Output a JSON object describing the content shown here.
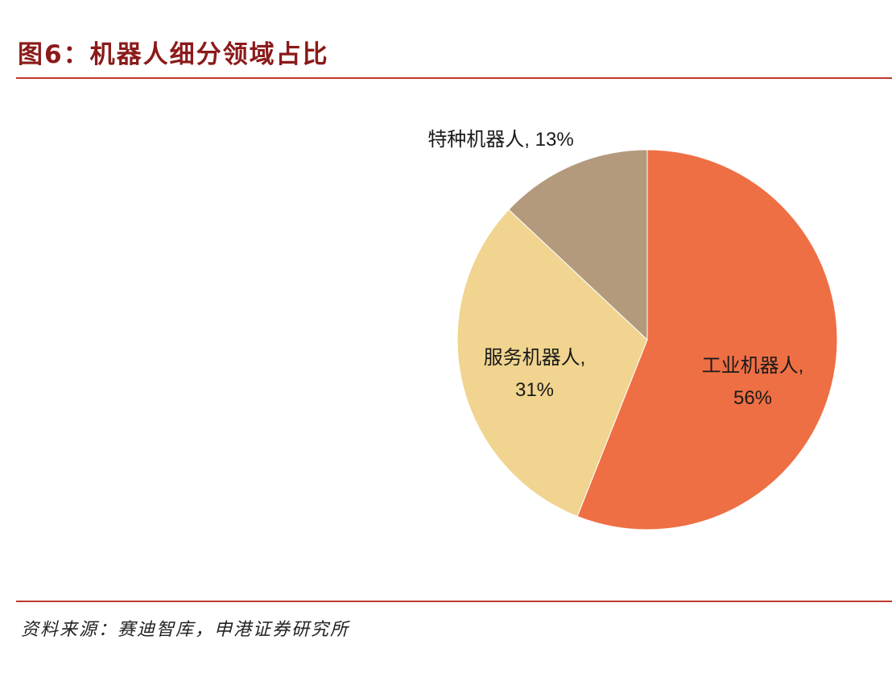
{
  "title": "图6：机器人细分领域占比",
  "source": "资料来源：赛迪智库，申港证券研究所",
  "chart_data": {
    "type": "pie",
    "title": "图6：机器人细分领域占比",
    "slices": [
      {
        "name": "工业机器人",
        "value": 56,
        "color": "#ee6f44",
        "label_lines": [
          "工业机器人,",
          "56%"
        ]
      },
      {
        "name": "服务机器人",
        "value": 31,
        "color": "#f0d48f",
        "label_lines": [
          "服务机器人,",
          "31%"
        ]
      },
      {
        "name": "特种机器人",
        "value": 13,
        "color": "#b39a7d",
        "label_lines": [
          "特种机器人, 13%"
        ]
      }
    ],
    "start_angle_deg": 0,
    "direction": "clockwise",
    "legend": "none"
  }
}
